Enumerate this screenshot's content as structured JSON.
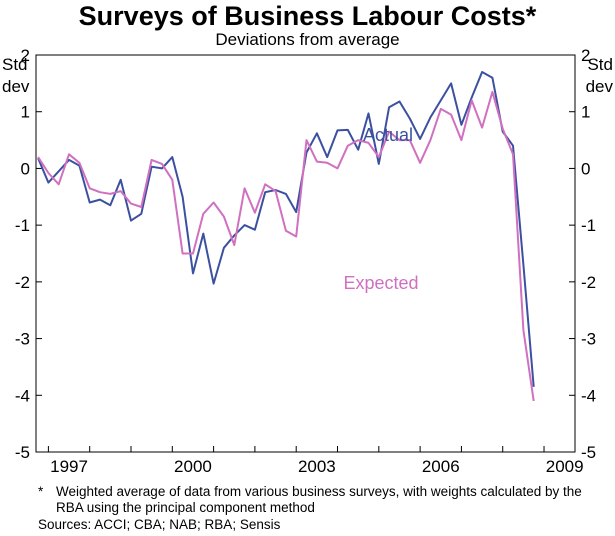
{
  "chart_data": {
    "type": "line",
    "title": "Surveys of Business Labour Costs*",
    "subtitle": "Deviations from average",
    "ylabel_left": [
      "Std",
      "dev"
    ],
    "ylabel_right": [
      "Std",
      "dev"
    ],
    "ylim": [
      -5,
      2
    ],
    "yticks": [
      2,
      1,
      0,
      -1,
      -2,
      -3,
      -4,
      -5
    ],
    "xlim": [
      1996.7,
      2009.75
    ],
    "xticks": [
      1997,
      2000,
      2003,
      2006,
      2009
    ],
    "grid": false,
    "series": [
      {
        "name": "Actual",
        "color": "#3c50a0",
        "x": [
          1996.75,
          1997.0,
          1997.25,
          1997.5,
          1997.75,
          1998.0,
          1998.25,
          1998.5,
          1998.75,
          1999.0,
          1999.25,
          1999.5,
          1999.75,
          2000.0,
          2000.25,
          2000.5,
          2000.75,
          2001.0,
          2001.25,
          2001.5,
          2001.75,
          2002.0,
          2002.25,
          2002.5,
          2002.75,
          2003.0,
          2003.25,
          2003.5,
          2003.75,
          2004.0,
          2004.25,
          2004.5,
          2004.75,
          2005.0,
          2005.25,
          2005.5,
          2005.75,
          2006.0,
          2006.25,
          2006.5,
          2006.75,
          2007.0,
          2007.25,
          2007.5,
          2007.75,
          2008.0,
          2008.25,
          2008.5,
          2008.75,
          2009.0
        ],
        "values": [
          0.18,
          -0.25,
          -0.05,
          0.15,
          0.05,
          -0.6,
          -0.55,
          -0.65,
          -0.2,
          -0.92,
          -0.8,
          0.03,
          0.0,
          0.2,
          -0.5,
          -1.85,
          -1.15,
          -2.03,
          -1.4,
          -1.18,
          -1.0,
          -1.08,
          -0.42,
          -0.38,
          -0.45,
          -0.77,
          0.28,
          0.62,
          0.2,
          0.67,
          0.68,
          0.33,
          0.97,
          0.08,
          1.08,
          1.18,
          0.88,
          0.52,
          0.9,
          1.2,
          1.5,
          0.77,
          1.25,
          1.7,
          1.6,
          0.65,
          0.4,
          -1.7,
          -3.85,
          null
        ]
      },
      {
        "name": "Expected",
        "color": "#d070c0",
        "x": [
          1996.75,
          1997.0,
          1997.25,
          1997.5,
          1997.75,
          1998.0,
          1998.25,
          1998.5,
          1998.75,
          1999.0,
          1999.25,
          1999.5,
          1999.75,
          2000.0,
          2000.25,
          2000.5,
          2000.75,
          2001.0,
          2001.25,
          2001.5,
          2001.75,
          2002.0,
          2002.25,
          2002.5,
          2002.75,
          2003.0,
          2003.25,
          2003.5,
          2003.75,
          2004.0,
          2004.25,
          2004.5,
          2004.75,
          2005.0,
          2005.25,
          2005.5,
          2005.75,
          2006.0,
          2006.25,
          2006.5,
          2006.75,
          2007.0,
          2007.25,
          2007.5,
          2007.75,
          2008.0,
          2008.25,
          2008.5,
          2008.75,
          2009.0
        ],
        "values": [
          0.2,
          -0.08,
          -0.28,
          0.25,
          0.1,
          -0.35,
          -0.42,
          -0.45,
          -0.4,
          -0.62,
          -0.68,
          0.15,
          0.08,
          -0.2,
          -1.5,
          -1.5,
          -0.8,
          -0.6,
          -0.85,
          -1.35,
          -0.35,
          -0.78,
          -0.28,
          -0.4,
          -1.1,
          -1.2,
          0.5,
          0.12,
          0.1,
          0.0,
          0.4,
          0.5,
          0.45,
          0.2,
          0.65,
          0.5,
          0.5,
          0.1,
          0.5,
          1.05,
          0.95,
          0.5,
          1.2,
          0.72,
          1.35,
          0.7,
          0.25,
          -2.85,
          -4.1,
          null
        ]
      }
    ],
    "annotations": [
      "Actual",
      "Expected"
    ]
  },
  "footnote": "Weighted average of data from various business surveys, with weights calculated by the RBA using the principal component method",
  "footnote_marker": "*",
  "sources": "Sources: ACCI; CBA; NAB; RBA; Sensis"
}
